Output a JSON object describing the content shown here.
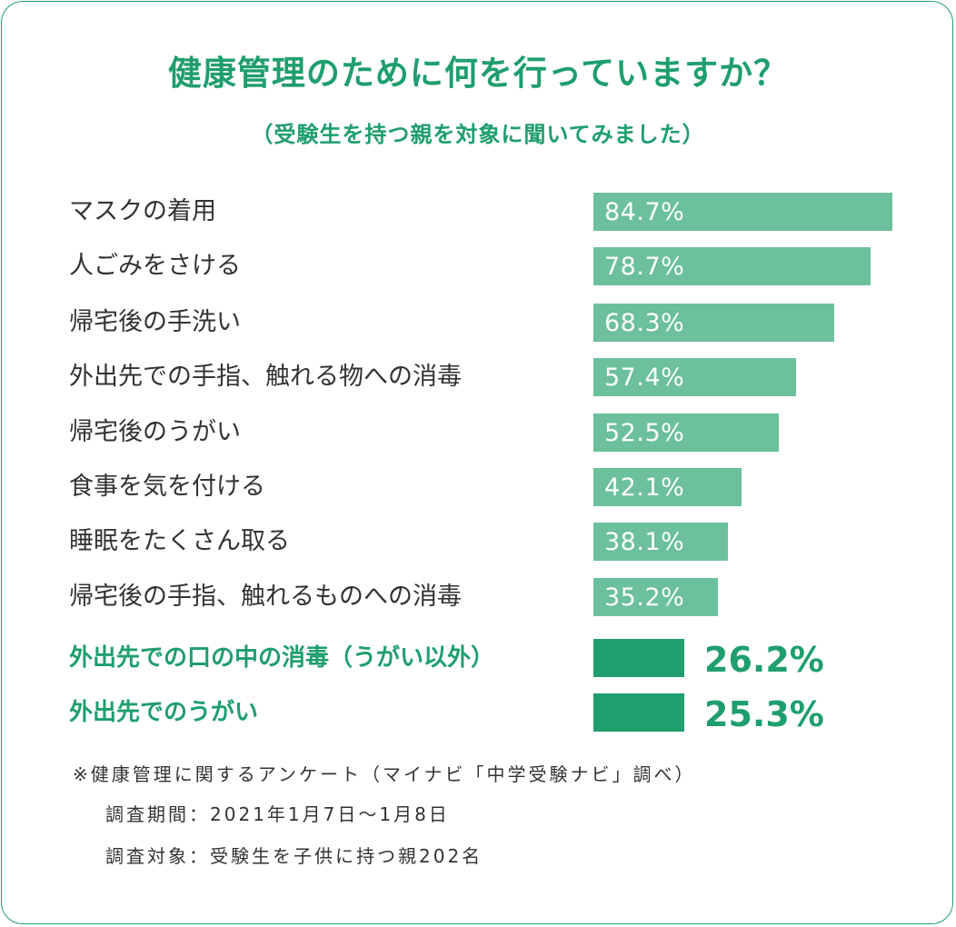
{
  "chart_data": {
    "type": "bar",
    "orientation": "horizontal",
    "title": "健康管理のために何を行っていますか？",
    "subtitle": "（受験生を持つ親を対象に聞いてみました）",
    "unit": "%",
    "xlim": [
      0,
      100
    ],
    "grid": false,
    "categories": [
      "マスクの着用",
      "人ごみをさける",
      "帰宅後の手洗い",
      "外出先での手指、触れる物への消毒",
      "帰宅後のうがい",
      "食事を気を付ける",
      "睡眠をたくさん取る",
      "帰宅後の手指、触れるものへの消毒",
      "外出先での口の中の消毒（うがい以外）",
      "外出先でのうがい"
    ],
    "values": [
      84.7,
      78.7,
      68.3,
      57.4,
      52.5,
      42.1,
      38.1,
      35.2,
      26.2,
      25.3
    ],
    "value_labels": [
      "84.7%",
      "78.7%",
      "68.3%",
      "57.4%",
      "52.5%",
      "42.1%",
      "38.1%",
      "35.2%",
      "26.2%",
      "25.3%"
    ],
    "highlighted": [
      false,
      false,
      false,
      false,
      false,
      false,
      false,
      false,
      true,
      true
    ]
  },
  "colors": {
    "accent": "#1f9e6e",
    "bar": "#6cc09c",
    "bar_highlight": "#1f9e6e",
    "text": "#333333"
  },
  "notes": {
    "line1": "※健康管理に関するアンケート（マイナビ「中学受験ナビ」調べ）",
    "line2": "調査期間：2021年1月7日～1月8日",
    "line3": "調査対象：受験生を子供に持つ親202名"
  }
}
